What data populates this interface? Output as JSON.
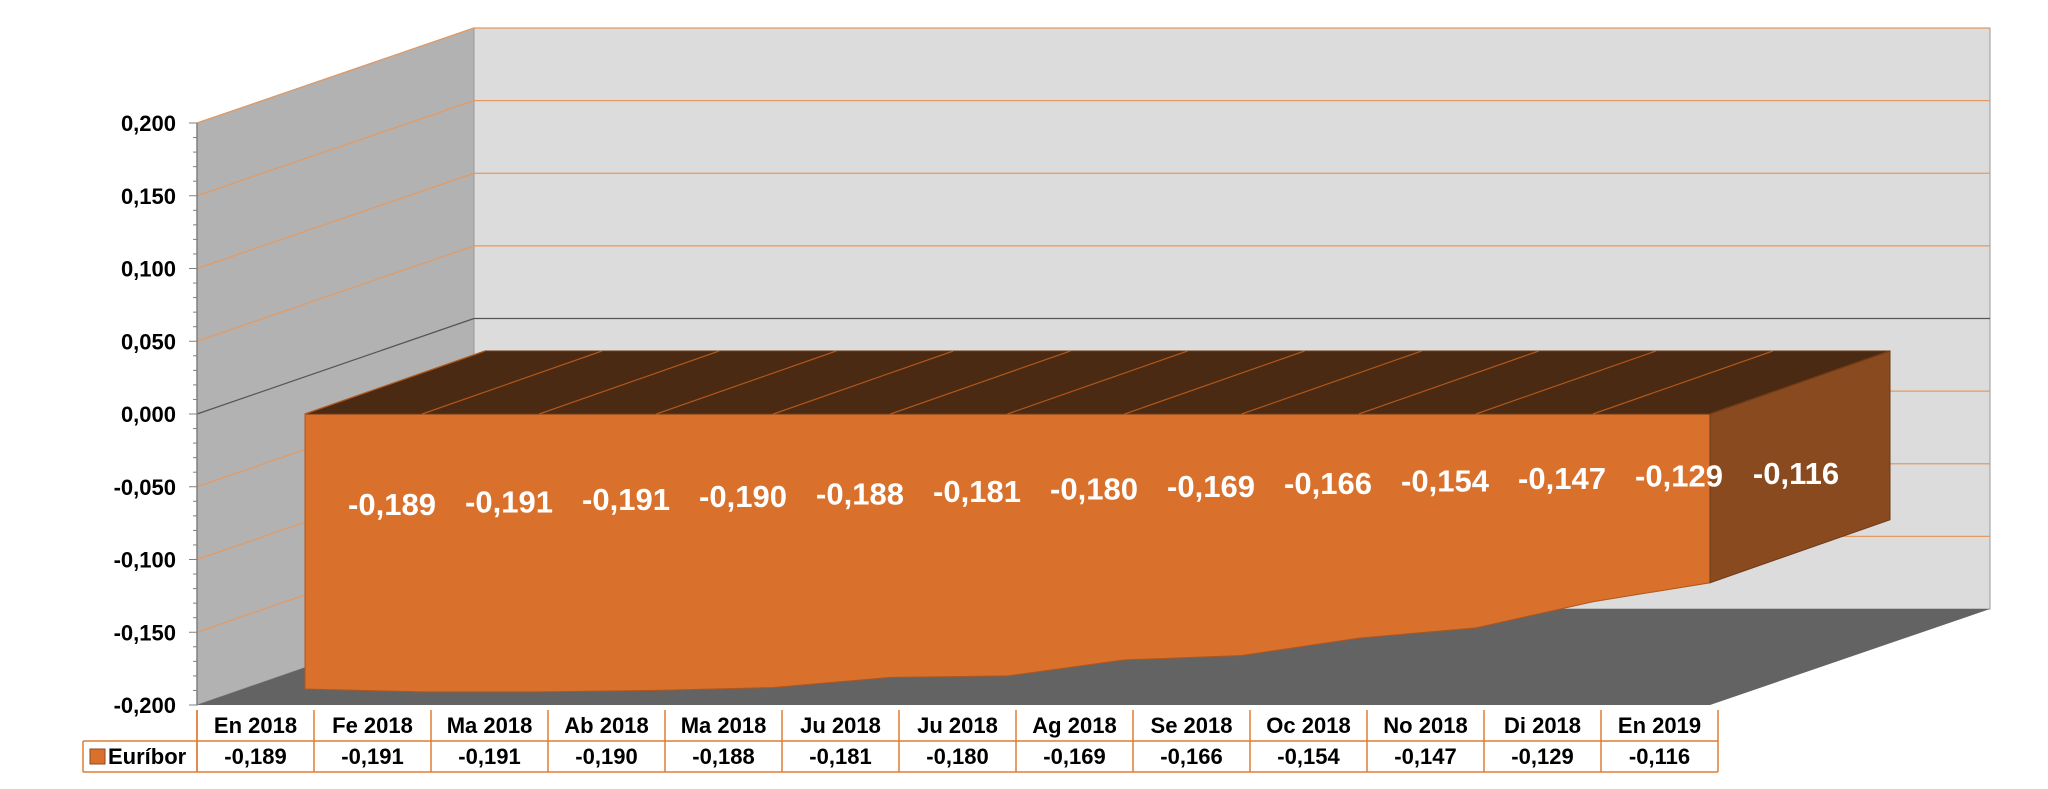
{
  "chart_data": {
    "type": "area",
    "title": "",
    "xlabel": "",
    "ylabel": "",
    "categories": [
      "En 2018",
      "Fe 2018",
      "Ma 2018",
      "Ab 2018",
      "Ma 2018",
      "Ju 2018",
      "Ju 2018",
      "Ag 2018",
      "Se 2018",
      "Oc 2018",
      "No 2018",
      "Di 2018",
      "En 2019"
    ],
    "series": [
      {
        "name": "Euríbor",
        "values": [
          -0.189,
          -0.191,
          -0.191,
          -0.19,
          -0.188,
          -0.181,
          -0.18,
          -0.169,
          -0.166,
          -0.154,
          -0.147,
          -0.129,
          -0.116
        ],
        "labels": [
          "-0,189",
          "-0,191",
          "-0,191",
          "-0,190",
          "-0,188",
          "-0,181",
          "-0,180",
          "-0,169",
          "-0,166",
          "-0,154",
          "-0,147",
          "-0,129",
          "-0,116"
        ]
      }
    ],
    "ylim": [
      -0.2,
      0.2
    ],
    "yticks": [
      0.2,
      0.15,
      0.1,
      0.05,
      0.0,
      -0.05,
      -0.1,
      -0.15,
      -0.2
    ],
    "ytick_labels": [
      "0,200",
      "0,150",
      "0,100",
      "0,050",
      "0,000",
      "-0,050",
      "-0,100",
      "-0,150",
      "-0,200"
    ],
    "grid": true,
    "three_d": true,
    "data_table": true,
    "colors": {
      "area_front": "#D9712C",
      "area_top": "#4A2A12",
      "area_side": "#8A4A20",
      "floor": "#636363",
      "back_wall": "#DCDCDC",
      "side_wall": "#B2B2B2",
      "gridline": "#E39A62",
      "table_border": "#E07B33",
      "legend_key": "#D9712C"
    }
  }
}
